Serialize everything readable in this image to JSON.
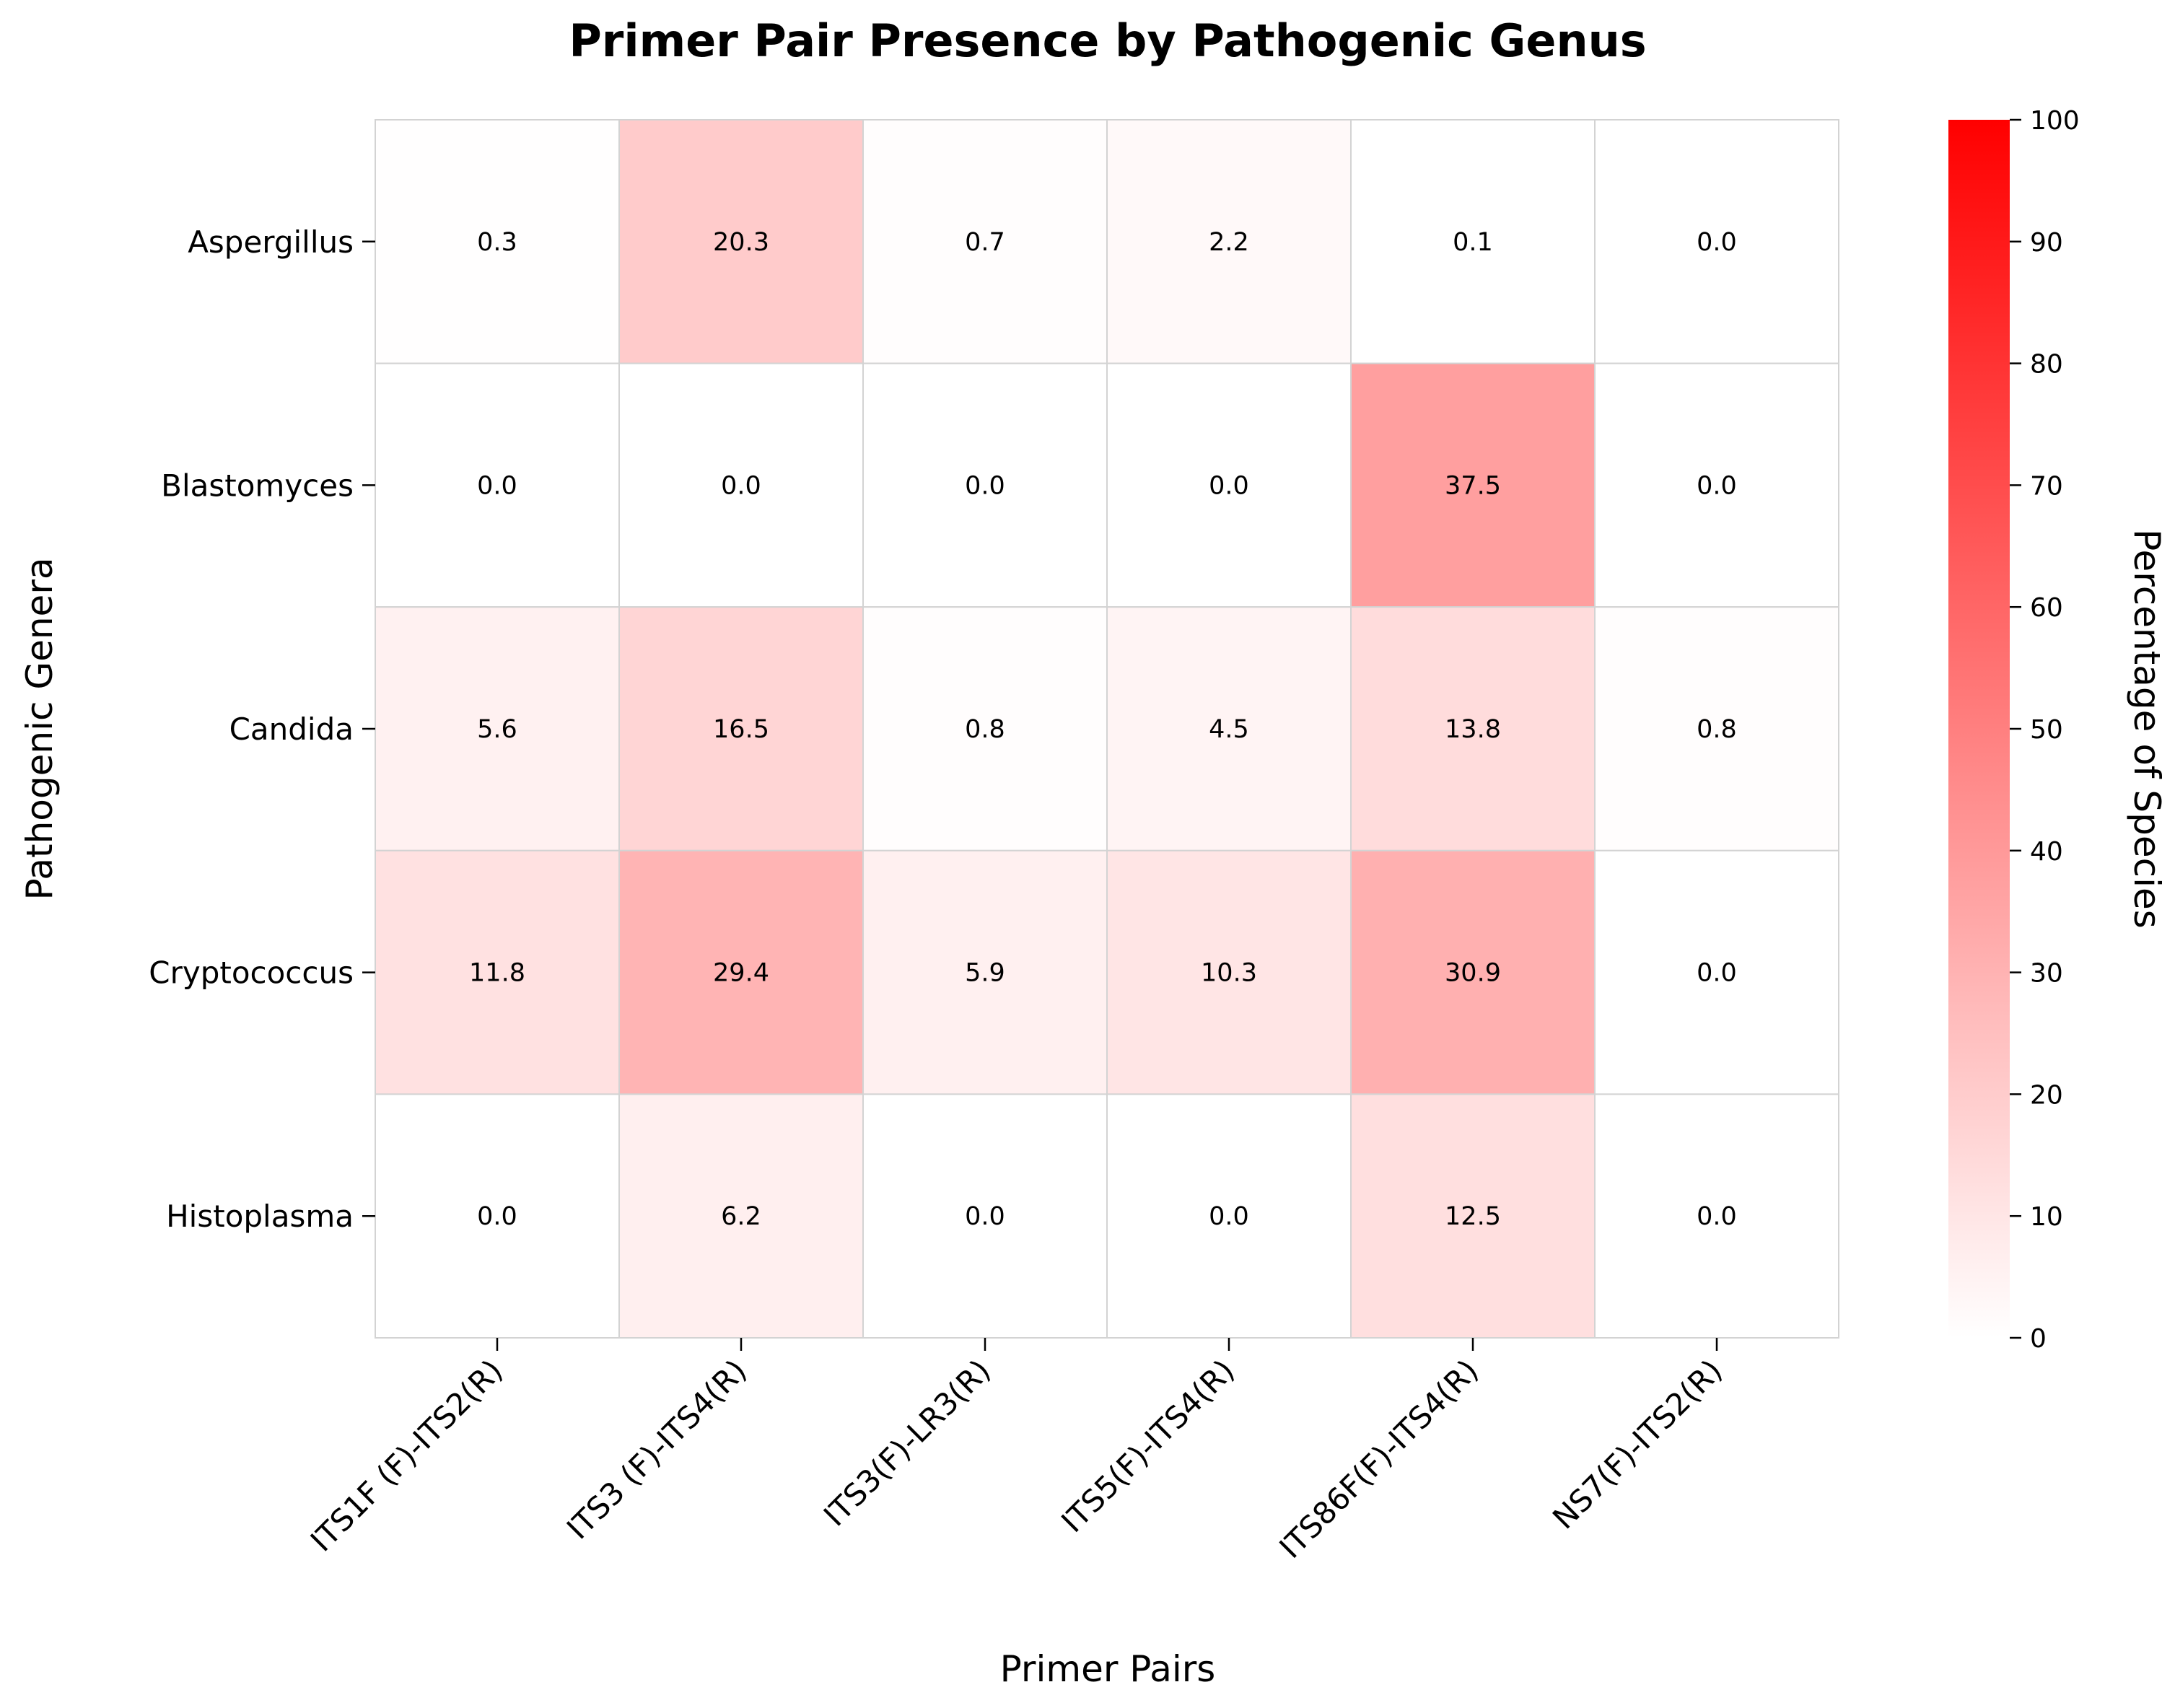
{
  "chart_data": {
    "type": "heatmap",
    "title": "Primer Pair Presence by Pathogenic Genus",
    "xlabel": "Primer Pairs",
    "ylabel": "Pathogenic Genera",
    "x": [
      "ITS1F (F)-ITS2(R)",
      "ITS3 (F)-ITS4(R)",
      "ITS3(F)-LR3(R)",
      "ITS5(F)-ITS4(R)",
      "ITS86F(F)-ITS4(R)",
      "NS7(F)-ITS2(R)"
    ],
    "y": [
      "Aspergillus",
      "Blastomyces",
      "Candida",
      "Cryptococcus",
      "Histoplasma"
    ],
    "values": [
      [
        0.3,
        20.3,
        0.7,
        2.2,
        0.1,
        0.0
      ],
      [
        0.0,
        0.0,
        0.0,
        0.0,
        37.5,
        0.0
      ],
      [
        5.6,
        16.5,
        0.8,
        4.5,
        13.8,
        0.8
      ],
      [
        11.8,
        29.4,
        5.9,
        10.3,
        30.9,
        0.0
      ],
      [
        0.0,
        6.2,
        0.0,
        0.0,
        12.5,
        0.0
      ]
    ],
    "value_labels": [
      [
        "0.3",
        "20.3",
        "0.7",
        "2.2",
        "0.1",
        "0.0"
      ],
      [
        "0.0",
        "0.0",
        "0.0",
        "0.0",
        "37.5",
        "0.0"
      ],
      [
        "5.6",
        "16.5",
        "0.8",
        "4.5",
        "13.8",
        "0.8"
      ],
      [
        "11.8",
        "29.4",
        "5.9",
        "10.3",
        "30.9",
        "0.0"
      ],
      [
        "0.0",
        "6.2",
        "0.0",
        "0.0",
        "12.5",
        "0.0"
      ]
    ],
    "colorbar": {
      "label": "Percentage of Species",
      "range": [
        0,
        100
      ],
      "ticks": [
        "0",
        "10",
        "20",
        "30",
        "40",
        "50",
        "60",
        "70",
        "80",
        "90",
        "100"
      ],
      "color_low": "#ffffff",
      "color_high": "#ff0000"
    },
    "grid": false
  },
  "colors": {
    "cell_border": "#d3d3d3",
    "text": "#000000",
    "background": "#ffffff"
  }
}
